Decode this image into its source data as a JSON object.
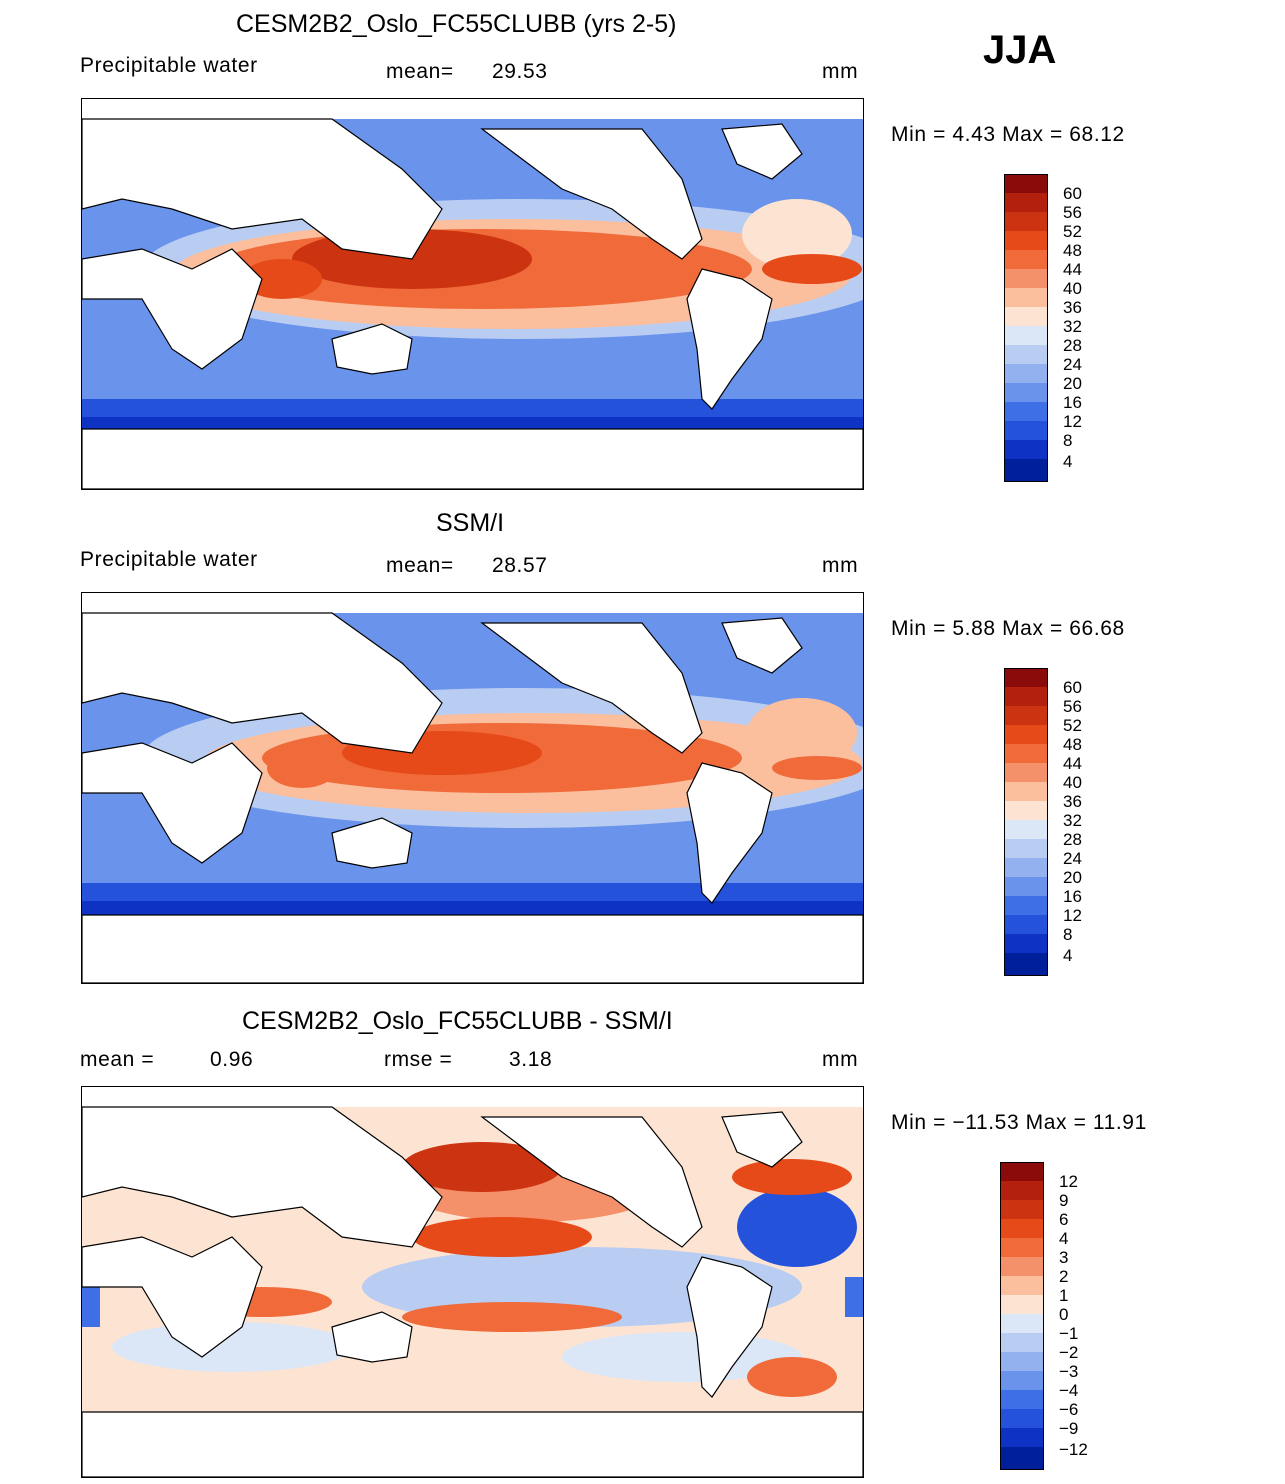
{
  "season": "JJA",
  "panels": [
    {
      "id": "model",
      "title": "CESM2B2_Oslo_FC55CLUBB (yrs 2-5)",
      "left_label": "Precipitable water",
      "stat_label": "mean=",
      "stat_value": "29.53",
      "units": "mm",
      "min_max": "Min =    4.43  Max =    68.12",
      "colorbar": {
        "ticks": [
          "60",
          "56",
          "52",
          "48",
          "44",
          "40",
          "36",
          "32",
          "28",
          "24",
          "20",
          "16",
          "12",
          "8",
          "4"
        ],
        "colors": [
          "#8b0a0a",
          "#b3200e",
          "#cc3311",
          "#e64a19",
          "#f06a3a",
          "#f5916a",
          "#fbbf9e",
          "#fde4d2",
          "#dbe7f7",
          "#b9cdf2",
          "#93b1ee",
          "#6a93ec",
          "#3f6fe6",
          "#2452db",
          "#0e33c4",
          "#001f9a"
        ]
      }
    },
    {
      "id": "obs",
      "title": "SSM/I",
      "left_label": "Precipitable water",
      "stat_label": "mean=",
      "stat_value": "28.57",
      "units": "mm",
      "min_max": "Min =    5.88  Max =    66.68",
      "colorbar": {
        "ticks": [
          "60",
          "56",
          "52",
          "48",
          "44",
          "40",
          "36",
          "32",
          "28",
          "24",
          "20",
          "16",
          "12",
          "8",
          "4"
        ],
        "colors": [
          "#8b0a0a",
          "#b3200e",
          "#cc3311",
          "#e64a19",
          "#f06a3a",
          "#f5916a",
          "#fbbf9e",
          "#fde4d2",
          "#dbe7f7",
          "#b9cdf2",
          "#93b1ee",
          "#6a93ec",
          "#3f6fe6",
          "#2452db",
          "#0e33c4",
          "#001f9a"
        ]
      }
    },
    {
      "id": "diff",
      "title": "CESM2B2_Oslo_FC55CLUBB - SSM/I",
      "left_label": "mean =",
      "left_value": "0.96",
      "stat_label": "rmse =",
      "stat_value": "3.18",
      "units": "mm",
      "min_max": "Min = −11.53  Max =    11.91",
      "colorbar": {
        "ticks": [
          "12",
          "9",
          "6",
          "4",
          "3",
          "2",
          "1",
          "0",
          "−1",
          "−2",
          "−3",
          "−4",
          "−6",
          "−9",
          "−12"
        ],
        "colors": [
          "#8b0a0a",
          "#b3200e",
          "#cc3311",
          "#e64a19",
          "#f06a3a",
          "#f5916a",
          "#fbbf9e",
          "#fde4d2",
          "#dbe7f7",
          "#b9cdf2",
          "#93b1ee",
          "#6a93ec",
          "#3f6fe6",
          "#2452db",
          "#0e33c4",
          "#001f9a"
        ]
      }
    }
  ]
}
